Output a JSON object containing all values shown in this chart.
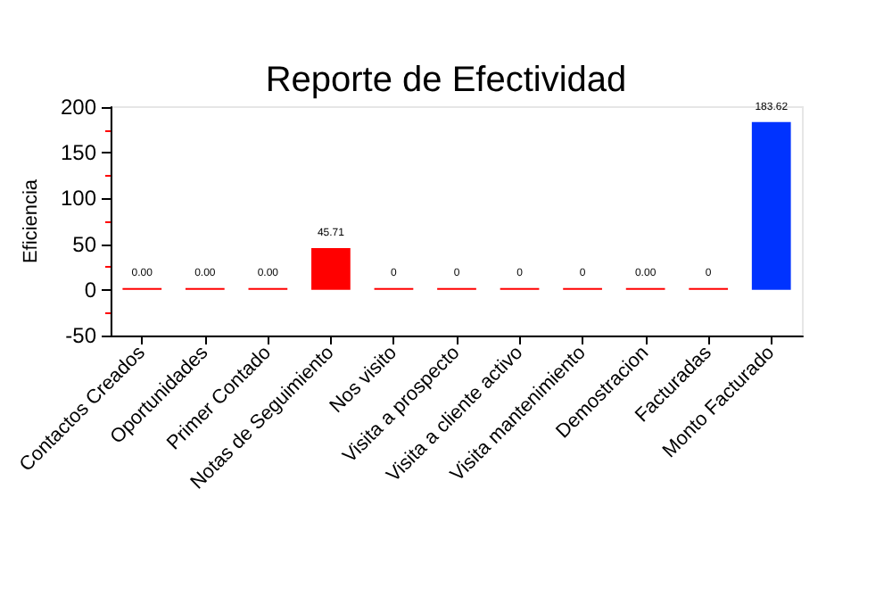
{
  "chart_data": {
    "type": "bar",
    "title": "Reporte de Efectividad",
    "ylabel": "Eficiencia",
    "categories": [
      "Contactos Creados",
      "Oportunidades",
      "Primer Contado",
      "Notas de Seguimiento",
      "Nos visito",
      "Visita a prospecto",
      "Visita a cliente activo",
      "Visita mantenimiento",
      "Demostracion",
      "Facturadas",
      "Monto Facturado"
    ],
    "values": [
      0,
      0,
      0,
      45.71,
      0,
      0,
      0,
      0,
      0,
      0,
      183.62
    ],
    "colors": [
      "#ff0000",
      "#ff0000",
      "#ff0000",
      "#ff0000",
      "#ff0000",
      "#ff0000",
      "#ff0000",
      "#ff0000",
      "#ff0000",
      "#ff0000",
      "#0033ff"
    ],
    "value_labels": [
      "0.00",
      "0.00",
      "0.00",
      "45.71",
      "0",
      "0",
      "0",
      "0",
      "0.00",
      "0",
      "183.62"
    ],
    "ylim": [
      -50,
      200
    ],
    "yticks": [
      -50,
      0,
      50,
      100,
      150,
      200
    ],
    "grid": false
  }
}
